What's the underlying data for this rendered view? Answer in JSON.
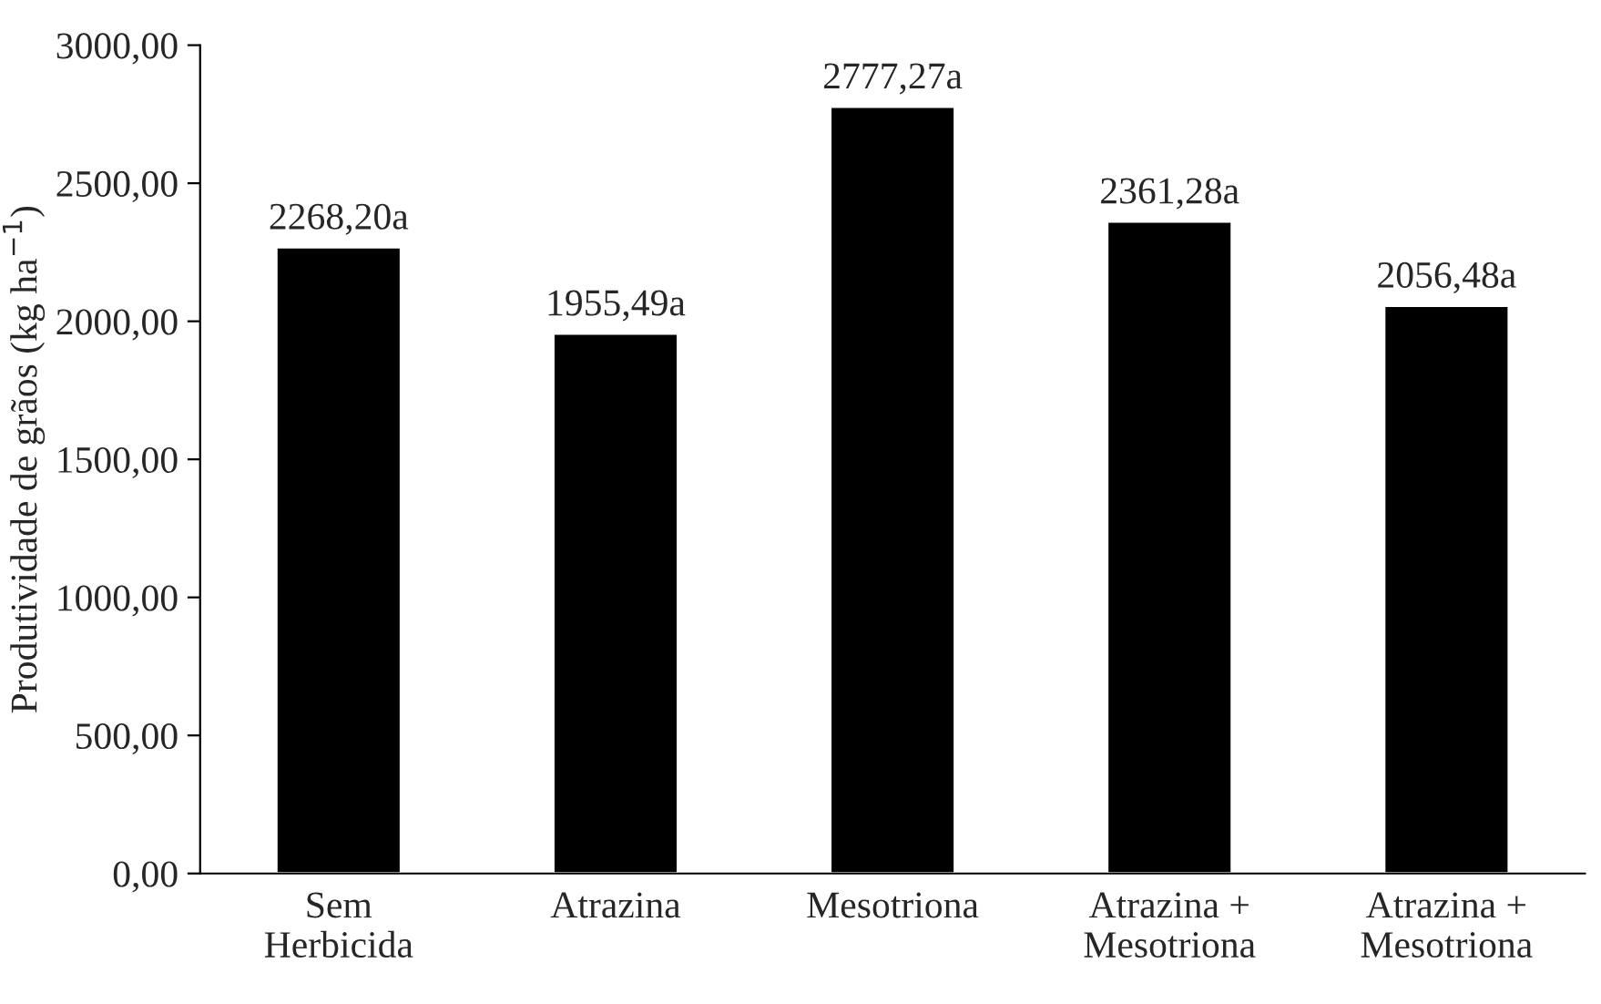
{
  "chart_data": {
    "type": "bar",
    "ylabel": "Produtividade de grãos (kg ha$^{−1}$)",
    "categories": [
      "Sem\nHerbicida",
      "Atrazina",
      "Mesotriona",
      "Atrazina +\nMesotriona",
      "Atrazina +\nMesotriona"
    ],
    "values": [
      2268.2,
      1955.49,
      2777.27,
      2361.28,
      2056.48
    ],
    "value_labels": [
      "2268,20a",
      "1955,49a",
      "2777,27a",
      "2361,28a",
      "2056,48a"
    ],
    "color": "#000000",
    "ylim": [
      0,
      3000
    ],
    "yticks": [
      {
        "value": 0,
        "label": "0,00"
      },
      {
        "value": 500,
        "label": "500,00"
      },
      {
        "value": 1000,
        "label": "1000,00"
      },
      {
        "value": 1500,
        "label": "1500,00"
      },
      {
        "value": 2000,
        "label": "2000,00"
      },
      {
        "value": 2500,
        "label": "2500,00"
      },
      {
        "value": 3000,
        "label": "3000,00"
      }
    ],
    "grid": false
  }
}
